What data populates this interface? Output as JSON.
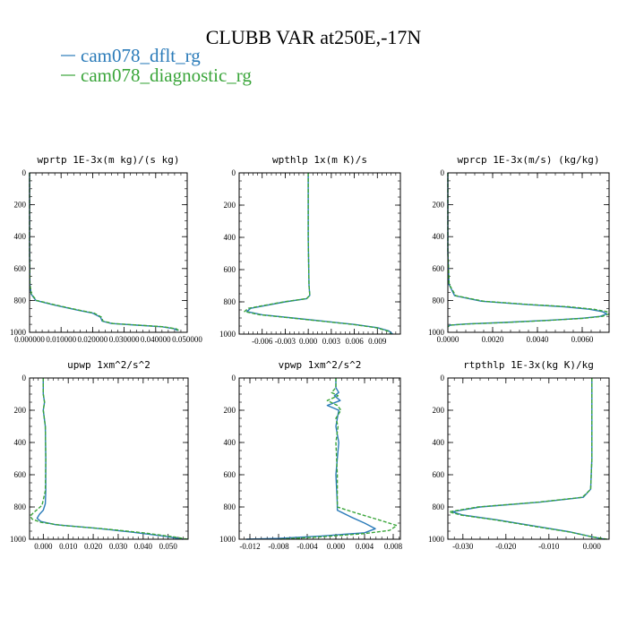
{
  "figure": {
    "title": "CLUBB VAR at250E,-17N",
    "legend": [
      {
        "name": "cam078_dflt_rg",
        "color": "#2b7bb9"
      },
      {
        "name": "cam078_diagnostic_rg",
        "color": "#3aa53a"
      }
    ]
  },
  "chart_data": [
    {
      "type": "line",
      "title": "wprtp  1E-3x(m kg)/(s kg)",
      "xlim": [
        0.0,
        0.05
      ],
      "ylim": [
        1000,
        0
      ],
      "xticks": [
        0.0,
        0.01,
        0.02,
        0.03,
        0.04,
        0.05
      ],
      "xtick_labels": [
        "0.000000",
        "0.010000",
        "0.020000",
        "0.030000",
        "0.040000",
        "0.050000"
      ],
      "yticks": [
        0,
        200,
        400,
        600,
        800,
        1000
      ],
      "ytick_labels": [
        "0",
        "200",
        "400",
        "600",
        "800",
        "1000"
      ],
      "series": [
        {
          "name": "cam078_dflt_rg",
          "color": "#2b7bb9",
          "dash": "",
          "x": [
            0.0,
            0.0,
            0.0001,
            0.0005,
            0.002,
            0.008,
            0.015,
            0.02,
            0.0225,
            0.023,
            0.026,
            0.034,
            0.042,
            0.046,
            0.047
          ],
          "y": [
            0,
            500,
            700,
            760,
            800,
            830,
            860,
            880,
            905,
            930,
            945,
            955,
            965,
            978,
            990
          ]
        },
        {
          "name": "cam078_diagnostic_rg",
          "color": "#3aa53a",
          "dash": "4,2",
          "x": [
            0.0,
            0.0,
            0.0001,
            0.0006,
            0.0022,
            0.0085,
            0.0155,
            0.0205,
            0.0228,
            0.0233,
            0.0265,
            0.0345,
            0.0425,
            0.0465,
            0.0475
          ],
          "y": [
            0,
            500,
            700,
            760,
            800,
            830,
            860,
            880,
            905,
            930,
            945,
            955,
            965,
            978,
            990
          ]
        }
      ]
    },
    {
      "type": "line",
      "title": "wpthlp  1x(m K)/s",
      "xlim": [
        -0.009,
        0.012
      ],
      "ylim": [
        1000,
        0
      ],
      "xticks": [
        -0.006,
        -0.003,
        0.0,
        0.003,
        0.006,
        0.009
      ],
      "xtick_labels": [
        "-0.006",
        "-0.003",
        "0.000",
        "0.003",
        "0.006",
        "0.009"
      ],
      "yticks": [
        0,
        200,
        400,
        600,
        800,
        1000
      ],
      "ytick_labels": [
        "0",
        "200",
        "400",
        "600",
        "800",
        "1000"
      ],
      "series": [
        {
          "name": "cam078_dflt_rg",
          "color": "#2b7bb9",
          "dash": "",
          "x": [
            0.0,
            0.0,
            0.0001,
            0.0002,
            -0.0002,
            -0.003,
            -0.0075,
            -0.008,
            -0.006,
            -0.002,
            0.002,
            0.006,
            0.009,
            0.0105,
            0.011
          ],
          "y": [
            0,
            400,
            700,
            760,
            780,
            800,
            840,
            860,
            880,
            900,
            920,
            940,
            960,
            980,
            1000
          ]
        },
        {
          "name": "cam078_diagnostic_rg",
          "color": "#3aa53a",
          "dash": "4,2",
          "x": [
            0.0,
            0.0,
            0.0001,
            0.0002,
            -0.0002,
            -0.0032,
            -0.0078,
            -0.0083,
            -0.0063,
            -0.0022,
            0.0018,
            0.0058,
            0.0088,
            0.0103,
            0.0108
          ],
          "y": [
            0,
            400,
            700,
            760,
            780,
            800,
            840,
            860,
            880,
            900,
            920,
            940,
            960,
            980,
            1000
          ]
        }
      ]
    },
    {
      "type": "line",
      "title": "wprcp  1E-3x(m/s) (kg/kg)",
      "xlim": [
        0.0,
        0.0072
      ],
      "ylim": [
        1000,
        0
      ],
      "xticks": [
        0.0,
        0.002,
        0.004,
        0.006
      ],
      "xtick_labels": [
        "0.0000",
        "0.0020",
        "0.0040",
        "0.0060"
      ],
      "yticks": [
        0,
        200,
        400,
        600,
        800,
        1000
      ],
      "ytick_labels": [
        "0",
        "200",
        "400",
        "600",
        "800",
        "1000"
      ],
      "series": [
        {
          "name": "cam078_dflt_rg",
          "color": "#2b7bb9",
          "dash": "",
          "x": [
            0.0,
            0.0,
            5e-05,
            0.0003,
            0.0015,
            0.0035,
            0.0052,
            0.0063,
            0.0069,
            0.0071,
            0.0068,
            0.006,
            0.0045,
            0.0025,
            0.0008,
            0.0001,
            0.0
          ],
          "y": [
            0,
            500,
            700,
            770,
            805,
            825,
            840,
            855,
            870,
            885,
            900,
            912,
            925,
            938,
            948,
            955,
            965
          ]
        },
        {
          "name": "cam078_diagnostic_rg",
          "color": "#3aa53a",
          "dash": "4,2",
          "x": [
            0.0,
            0.0,
            6e-05,
            0.00035,
            0.0016,
            0.0036,
            0.0054,
            0.0065,
            0.0071,
            0.0072,
            0.0069,
            0.0061,
            0.0046,
            0.0026,
            0.0009,
            0.0001,
            0.0
          ],
          "y": [
            0,
            500,
            700,
            770,
            805,
            825,
            840,
            855,
            870,
            885,
            900,
            912,
            925,
            938,
            948,
            955,
            965
          ]
        }
      ]
    },
    {
      "type": "line",
      "title": "upwp  1xm^2/s^2",
      "xlim": [
        -0.0055,
        0.058
      ],
      "ylim": [
        1000,
        0
      ],
      "xticks": [
        0.0,
        0.01,
        0.02,
        0.03,
        0.04,
        0.05
      ],
      "xtick_labels": [
        "0.000",
        "0.010",
        "0.020",
        "0.030",
        "0.040",
        "0.050"
      ],
      "yticks": [
        0,
        200,
        400,
        600,
        800,
        1000
      ],
      "ytick_labels": [
        "0",
        "200",
        "400",
        "600",
        "800",
        "1000"
      ],
      "series": [
        {
          "name": "cam078_dflt_rg",
          "color": "#2b7bb9",
          "dash": "",
          "x": [
            0.0,
            0.0,
            0.0005,
            0.0,
            0.0008,
            0.001,
            0.001,
            0.0008,
            0.0,
            -0.0015,
            -0.0025,
            -0.001,
            0.005,
            0.02,
            0.035,
            0.048,
            0.056
          ],
          "y": [
            0,
            100,
            150,
            200,
            300,
            500,
            700,
            780,
            820,
            845,
            870,
            890,
            910,
            930,
            955,
            980,
            1000
          ]
        },
        {
          "name": "cam078_diagnostic_rg",
          "color": "#3aa53a",
          "dash": "4,2",
          "x": [
            0.0,
            0.0,
            0.0005,
            0.0,
            0.0008,
            0.001,
            0.0008,
            -0.0005,
            -0.0035,
            -0.0052,
            -0.0045,
            -0.001,
            0.008,
            0.024,
            0.04,
            0.052,
            0.058
          ],
          "y": [
            0,
            100,
            150,
            200,
            300,
            500,
            700,
            790,
            830,
            855,
            875,
            895,
            915,
            935,
            960,
            985,
            1000
          ]
        }
      ]
    },
    {
      "type": "line",
      "title": "vpwp  1xm^2/s^2",
      "xlim": [
        -0.0135,
        0.009
      ],
      "ylim": [
        1000,
        0
      ],
      "xticks": [
        -0.012,
        -0.008,
        -0.004,
        0.0,
        0.004,
        0.008
      ],
      "xtick_labels": [
        "-0.012",
        "-0.008",
        "-0.004",
        "0.000",
        "0.004",
        "0.008"
      ],
      "yticks": [
        0,
        200,
        400,
        600,
        800,
        1000
      ],
      "ytick_labels": [
        "0",
        "200",
        "400",
        "600",
        "800",
        "1000"
      ],
      "series": [
        {
          "name": "cam078_dflt_rg",
          "color": "#2b7bb9",
          "dash": "",
          "x": [
            0.0,
            0.0,
            0.0004,
            -0.0002,
            0.0006,
            -0.0012,
            0.0004,
            0.0002,
            0.0,
            0.0004,
            0.0,
            0.0002,
            0.0002,
            0.002,
            0.004,
            0.0055,
            0.004,
            -0.002,
            -0.008,
            -0.0125
          ],
          "y": [
            0,
            60,
            90,
            110,
            140,
            170,
            200,
            250,
            300,
            400,
            600,
            780,
            820,
            860,
            900,
            935,
            960,
            980,
            995,
            1000
          ]
        },
        {
          "name": "cam078_diagnostic_rg",
          "color": "#3aa53a",
          "dash": "4,2",
          "x": [
            0.0,
            0.0,
            -0.0006,
            0.0003,
            -0.0012,
            0.0002,
            0.0007,
            0.0,
            0.0003,
            0.0,
            0.0002,
            0.0002,
            0.0002,
            0.003,
            0.006,
            0.0085,
            0.0075,
            0.004,
            -0.002,
            -0.008
          ],
          "y": [
            0,
            60,
            90,
            110,
            140,
            170,
            200,
            250,
            300,
            400,
            600,
            780,
            800,
            840,
            880,
            915,
            945,
            965,
            985,
            1000
          ]
        }
      ]
    },
    {
      "type": "line",
      "title": "rtpthlp  1E-3x(kg K)/kg",
      "xlim": [
        -0.0335,
        0.004
      ],
      "ylim": [
        1000,
        0
      ],
      "xticks": [
        -0.03,
        -0.02,
        -0.01,
        0.0
      ],
      "xtick_labels": [
        "-0.030",
        "-0.020",
        "-0.010",
        "0.000"
      ],
      "yticks": [
        0,
        200,
        400,
        600,
        800,
        1000
      ],
      "ytick_labels": [
        "0",
        "200",
        "400",
        "600",
        "800",
        "1000"
      ],
      "series": [
        {
          "name": "cam078_dflt_rg",
          "color": "#2b7bb9",
          "dash": "",
          "x": [
            0.0,
            0.0,
            -0.0003,
            -0.002,
            -0.012,
            -0.026,
            -0.0325,
            -0.03,
            -0.022,
            -0.013,
            -0.005,
            0.0,
            0.003
          ],
          "y": [
            0,
            500,
            690,
            740,
            770,
            800,
            830,
            850,
            880,
            920,
            955,
            985,
            1000
          ]
        },
        {
          "name": "cam078_diagnostic_rg",
          "color": "#3aa53a",
          "dash": "4,2",
          "x": [
            0.0,
            0.0,
            -0.0003,
            -0.0022,
            -0.0125,
            -0.0265,
            -0.0332,
            -0.0305,
            -0.0225,
            -0.0135,
            -0.0052,
            0.0,
            0.0035
          ],
          "y": [
            0,
            500,
            690,
            740,
            770,
            800,
            830,
            850,
            880,
            920,
            955,
            985,
            1000
          ]
        }
      ]
    }
  ]
}
